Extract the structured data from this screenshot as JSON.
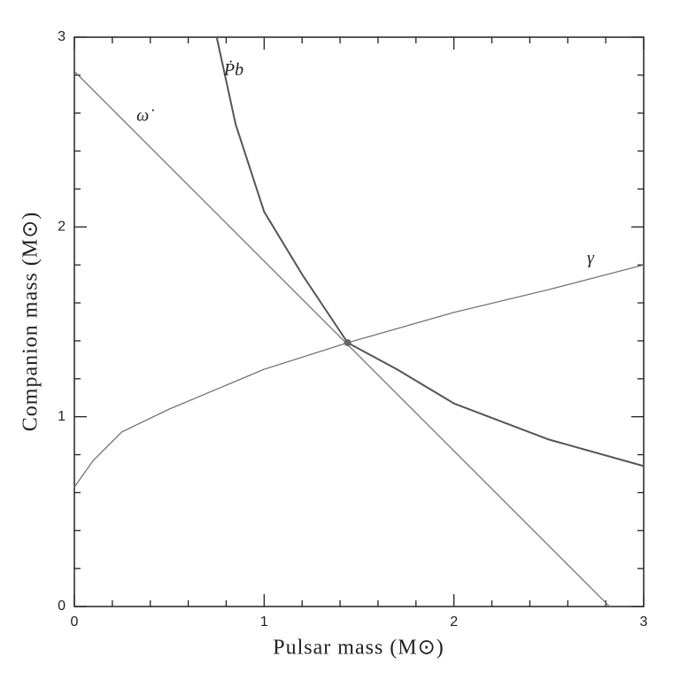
{
  "chart_data": {
    "type": "line",
    "xlabel": "Pulsar mass (M⊙)",
    "ylabel": "Companion mass (M⊙)",
    "xlim": [
      0,
      3
    ],
    "ylim": [
      0,
      3
    ],
    "xticks": [
      0,
      1,
      2,
      3
    ],
    "yticks": [
      0,
      1,
      2,
      3
    ],
    "xminor": [
      0.2,
      0.4,
      0.6,
      0.8,
      1.2,
      1.4,
      1.6,
      1.8,
      2.2,
      2.4,
      2.6,
      2.8
    ],
    "yminor": [
      0.2,
      0.4,
      0.6,
      0.8,
      1.2,
      1.4,
      1.6,
      1.8,
      2.2,
      2.4,
      2.6,
      2.8
    ],
    "grid": false,
    "series": [
      {
        "name": "ω̇",
        "color": "#6a6a6a",
        "x": [
          0,
          2.82
        ],
        "values": [
          2.82,
          0
        ]
      },
      {
        "name": "Ṗb",
        "color": "#555555",
        "x": [
          0.75,
          0.85,
          1.0,
          1.2,
          1.44,
          1.7,
          2.0,
          2.5,
          3.0
        ],
        "values": [
          3.0,
          2.54,
          2.08,
          1.75,
          1.39,
          1.25,
          1.07,
          0.88,
          0.74
        ]
      },
      {
        "name": "γ",
        "color": "#6a6a6a",
        "x": [
          0,
          0.1,
          0.25,
          0.5,
          1.0,
          1.44,
          2.0,
          2.5,
          3.0
        ],
        "values": [
          0.63,
          0.77,
          0.92,
          1.04,
          1.25,
          1.39,
          1.55,
          1.67,
          1.8
        ]
      }
    ],
    "point": {
      "x": 1.44,
      "y": 1.39,
      "color": "#666666"
    }
  }
}
